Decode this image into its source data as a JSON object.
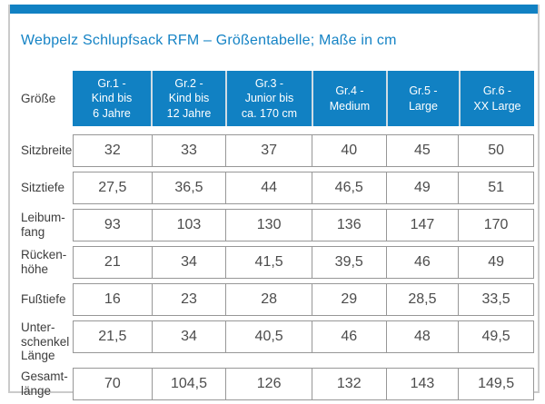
{
  "page": {
    "title": "Webpelz Schlupfsack RFM – Größentabelle; Maße in cm",
    "accent_color": "#1181c3",
    "unit": "cm"
  },
  "table": {
    "corner_label": "Größe",
    "columns": [
      "Gr.1 -\nKind bis\n6 Jahre",
      "Gr.2 -\nKind bis\n12 Jahre",
      "Gr.3 -\nJunior bis\nca. 170 cm",
      "Gr.4 -\nMedium",
      "Gr.5 -\nLarge",
      "Gr.6 -\nXX Large"
    ],
    "rows": [
      {
        "label": "Sitzbreite",
        "values": [
          "32",
          "33",
          "37",
          "40",
          "45",
          "50"
        ]
      },
      {
        "label": "Sitztiefe",
        "values": [
          "27,5",
          "36,5",
          "44",
          "46,5",
          "49",
          "51"
        ]
      },
      {
        "label": "Leibum-\nfang",
        "values": [
          "93",
          "103",
          "130",
          "136",
          "147",
          "170"
        ]
      },
      {
        "label": "Rücken-\nhöhe",
        "values": [
          "21",
          "34",
          "41,5",
          "39,5",
          "46",
          "49"
        ]
      },
      {
        "label": "Fußtiefe",
        "values": [
          "16",
          "23",
          "28",
          "29",
          "28,5",
          "33,5"
        ]
      },
      {
        "label": "Unter-\nschenkel\nLänge",
        "values": [
          "21,5",
          "34",
          "40,5",
          "46",
          "48",
          "49,5"
        ]
      },
      {
        "label": "Gesamt-\nlänge",
        "values": [
          "70",
          "104,5",
          "126",
          "132",
          "143",
          "149,5"
        ]
      }
    ]
  }
}
